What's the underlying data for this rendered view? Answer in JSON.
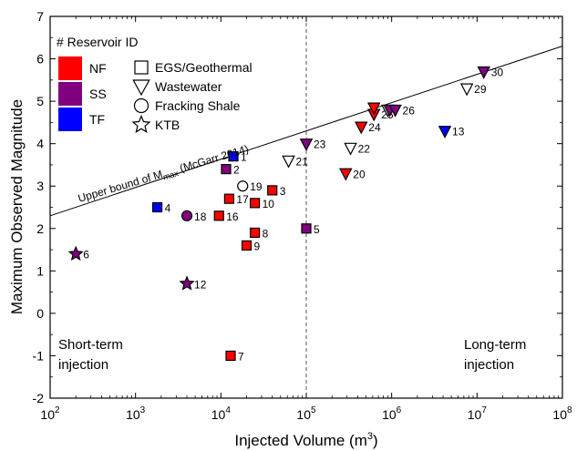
{
  "chart_data": {
    "type": "scatter",
    "xlabel": "Injected Volume (m",
    "xlabel_sup": "3",
    "xlabel_end": ")",
    "ylabel": "Maximum Observed Magnitude",
    "x_scale": "log",
    "xlim": [
      100,
      100000000
    ],
    "ylim": [
      -2,
      7
    ],
    "x_ticks": [
      {
        "value": 100,
        "base": "10",
        "exp": "2"
      },
      {
        "value": 1000,
        "base": "10",
        "exp": "3"
      },
      {
        "value": 10000,
        "base": "10",
        "exp": "4"
      },
      {
        "value": 100000,
        "base": "10",
        "exp": "5"
      },
      {
        "value": 1000000,
        "base": "10",
        "exp": "6"
      },
      {
        "value": 10000000,
        "base": "10",
        "exp": "7"
      },
      {
        "value": 100000000,
        "base": "10",
        "exp": "8"
      }
    ],
    "y_ticks": [
      {
        "value": -2,
        "label": "-2"
      },
      {
        "value": -1,
        "label": "-1"
      },
      {
        "value": 0,
        "label": "0"
      },
      {
        "value": 1,
        "label": "1"
      },
      {
        "value": 2,
        "label": "2"
      },
      {
        "value": 3,
        "label": "3"
      },
      {
        "value": 4,
        "label": "4"
      },
      {
        "value": 5,
        "label": "5"
      },
      {
        "value": 6,
        "label": "6"
      },
      {
        "value": 7,
        "label": "7"
      }
    ],
    "grid": false,
    "colors": {
      "NF": "#ff0000",
      "SS": "#800080",
      "TF": "#0000ff",
      "none": "#ffffff"
    },
    "legend": {
      "title": "# Reservoir ID",
      "placement": "top-left",
      "color_entries": [
        {
          "key": "NF",
          "label": "NF"
        },
        {
          "key": "SS",
          "label": "SS"
        },
        {
          "key": "TF",
          "label": "TF"
        }
      ],
      "shape_entries": [
        {
          "shape": "square",
          "label": "EGS/Geothermal"
        },
        {
          "shape": "triangle",
          "label": "Wastewater"
        },
        {
          "shape": "circle",
          "label": "Fracking Shale"
        },
        {
          "shape": "star",
          "label": "KTB"
        }
      ]
    },
    "reference_line": {
      "label_prefix": "Upper bound of M",
      "label_sub": "max",
      "label_suffix": " (McGarr 2014)",
      "points": [
        {
          "x": 100,
          "y": 2.3
        },
        {
          "x": 100000000,
          "y": 6.3
        }
      ]
    },
    "vertical_line": {
      "x": 100000,
      "style": "dashed"
    },
    "annotations": [
      {
        "text": "Short-term",
        "placement": "bottom-left-line1"
      },
      {
        "text": "injection",
        "placement": "bottom-left-line2"
      },
      {
        "text": "Long-term",
        "placement": "bottom-right-line1"
      },
      {
        "text": "injection",
        "placement": "bottom-right-line2"
      }
    ],
    "points": [
      {
        "id": "1",
        "x": 14000,
        "y": 3.7,
        "shape": "square",
        "reservoir": "TF"
      },
      {
        "id": "2",
        "x": 11500,
        "y": 3.4,
        "shape": "square",
        "reservoir": "SS"
      },
      {
        "id": "3",
        "x": 40000,
        "y": 2.9,
        "shape": "square",
        "reservoir": "NF"
      },
      {
        "id": "4",
        "x": 1800,
        "y": 2.5,
        "shape": "square",
        "reservoir": "TF"
      },
      {
        "id": "5",
        "x": 100000,
        "y": 2.0,
        "shape": "square",
        "reservoir": "SS"
      },
      {
        "id": "6",
        "x": 200,
        "y": 1.4,
        "shape": "star",
        "reservoir": "SS"
      },
      {
        "id": "7",
        "x": 13000,
        "y": -1.0,
        "shape": "square",
        "reservoir": "NF"
      },
      {
        "id": "8",
        "x": 25000,
        "y": 1.9,
        "shape": "square",
        "reservoir": "NF"
      },
      {
        "id": "9",
        "x": 20000,
        "y": 1.6,
        "shape": "square",
        "reservoir": "NF"
      },
      {
        "id": "10",
        "x": 25000,
        "y": 2.6,
        "shape": "square",
        "reservoir": "NF"
      },
      {
        "id": "12",
        "x": 4000,
        "y": 0.7,
        "shape": "star",
        "reservoir": "SS"
      },
      {
        "id": "13",
        "x": 4200000,
        "y": 4.3,
        "shape": "triangle",
        "reservoir": "TF"
      },
      {
        "id": "16",
        "x": 9500,
        "y": 2.3,
        "shape": "square",
        "reservoir": "NF"
      },
      {
        "id": "17",
        "x": 12500,
        "y": 2.7,
        "shape": "square",
        "reservoir": "NF"
      },
      {
        "id": "18",
        "x": 4000,
        "y": 2.3,
        "shape": "circle",
        "reservoir": "SS"
      },
      {
        "id": "19",
        "x": 18000,
        "y": 3.0,
        "shape": "circle",
        "reservoir": "none"
      },
      {
        "id": "20",
        "x": 290000,
        "y": 3.3,
        "shape": "triangle",
        "reservoir": "NF"
      },
      {
        "id": "21",
        "x": 62000,
        "y": 3.6,
        "shape": "triangle",
        "reservoir": "none"
      },
      {
        "id": "22",
        "x": 330000,
        "y": 3.9,
        "shape": "triangle",
        "reservoir": "none"
      },
      {
        "id": "23",
        "x": 100000,
        "y": 4.0,
        "shape": "triangle",
        "reservoir": "SS"
      },
      {
        "id": "24",
        "x": 440000,
        "y": 4.4,
        "shape": "triangle",
        "reservoir": "NF"
      },
      {
        "id": "25",
        "x": 620000,
        "y": 4.7,
        "shape": "triangle",
        "reservoir": "NF"
      },
      {
        "id": "",
        "x": 620000,
        "y": 4.85,
        "shape": "triangle",
        "reservoir": "NF"
      },
      {
        "id": "",
        "x": 900000,
        "y": 4.8,
        "shape": "triangle",
        "reservoir": "none"
      },
      {
        "id": "",
        "x": 950000,
        "y": 4.8,
        "shape": "triangle",
        "reservoir": "SS"
      },
      {
        "id": "26",
        "x": 1100000,
        "y": 4.8,
        "shape": "triangle",
        "reservoir": "SS"
      },
      {
        "id": "29",
        "x": 7600000,
        "y": 5.3,
        "shape": "triangle",
        "reservoir": "none"
      },
      {
        "id": "30",
        "x": 12000000,
        "y": 5.7,
        "shape": "triangle",
        "reservoir": "SS"
      }
    ]
  }
}
